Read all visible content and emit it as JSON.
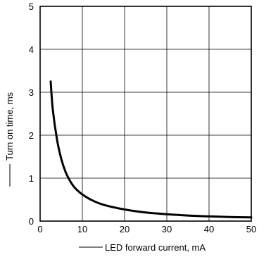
{
  "chart_data": {
    "type": "line",
    "xlabel": "LED forward current, mA",
    "ylabel": "Turn on time, ms",
    "xlim": [
      0,
      50
    ],
    "ylim": [
      0,
      5
    ],
    "x_ticks": [
      0,
      10,
      20,
      30,
      40,
      50
    ],
    "y_ticks": [
      0,
      1,
      2,
      3,
      4,
      5
    ],
    "grid": true,
    "series": [
      {
        "x": [
          2.5,
          3,
          4,
          5,
          6,
          7,
          8,
          9,
          10,
          12,
          15,
          20,
          25,
          30,
          35,
          40,
          45,
          50
        ],
        "y": [
          3.25,
          2.6,
          1.9,
          1.45,
          1.15,
          0.95,
          0.8,
          0.7,
          0.62,
          0.5,
          0.38,
          0.27,
          0.2,
          0.16,
          0.13,
          0.11,
          0.095,
          0.085
        ]
      }
    ]
  }
}
